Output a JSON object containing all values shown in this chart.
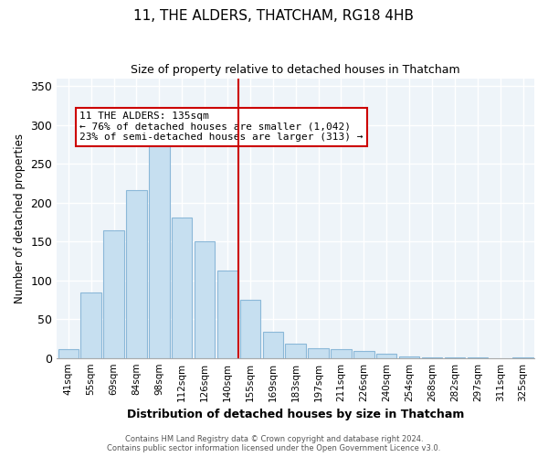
{
  "title": "11, THE ALDERS, THATCHAM, RG18 4HB",
  "subtitle": "Size of property relative to detached houses in Thatcham",
  "xlabel": "Distribution of detached houses by size in Thatcham",
  "ylabel": "Number of detached properties",
  "footer_lines": [
    "Contains HM Land Registry data © Crown copyright and database right 2024.",
    "Contains public sector information licensed under the Open Government Licence v3.0."
  ],
  "bar_labels": [
    "41sqm",
    "55sqm",
    "69sqm",
    "84sqm",
    "98sqm",
    "112sqm",
    "126sqm",
    "140sqm",
    "155sqm",
    "169sqm",
    "183sqm",
    "197sqm",
    "211sqm",
    "226sqm",
    "240sqm",
    "254sqm",
    "268sqm",
    "282sqm",
    "297sqm",
    "311sqm",
    "325sqm"
  ],
  "bar_values": [
    11,
    84,
    164,
    216,
    286,
    181,
    150,
    113,
    75,
    34,
    18,
    13,
    11,
    9,
    5,
    2,
    1,
    1,
    1,
    0,
    1
  ],
  "bar_color": "#c6dff0",
  "bar_edge_color": "#8bb8d8",
  "vline_x": 7.5,
  "vline_color": "#cc0000",
  "annotation_title": "11 THE ALDERS: 135sqm",
  "annotation_line1": "← 76% of detached houses are smaller (1,042)",
  "annotation_line2": "23% of semi-detached houses are larger (313) →",
  "annotation_box_color": "#ffffff",
  "annotation_box_edge": "#cc0000",
  "ylim": [
    0,
    360
  ],
  "yticks": [
    0,
    50,
    100,
    150,
    200,
    250,
    300,
    350
  ],
  "bg_color": "#eef4f9"
}
